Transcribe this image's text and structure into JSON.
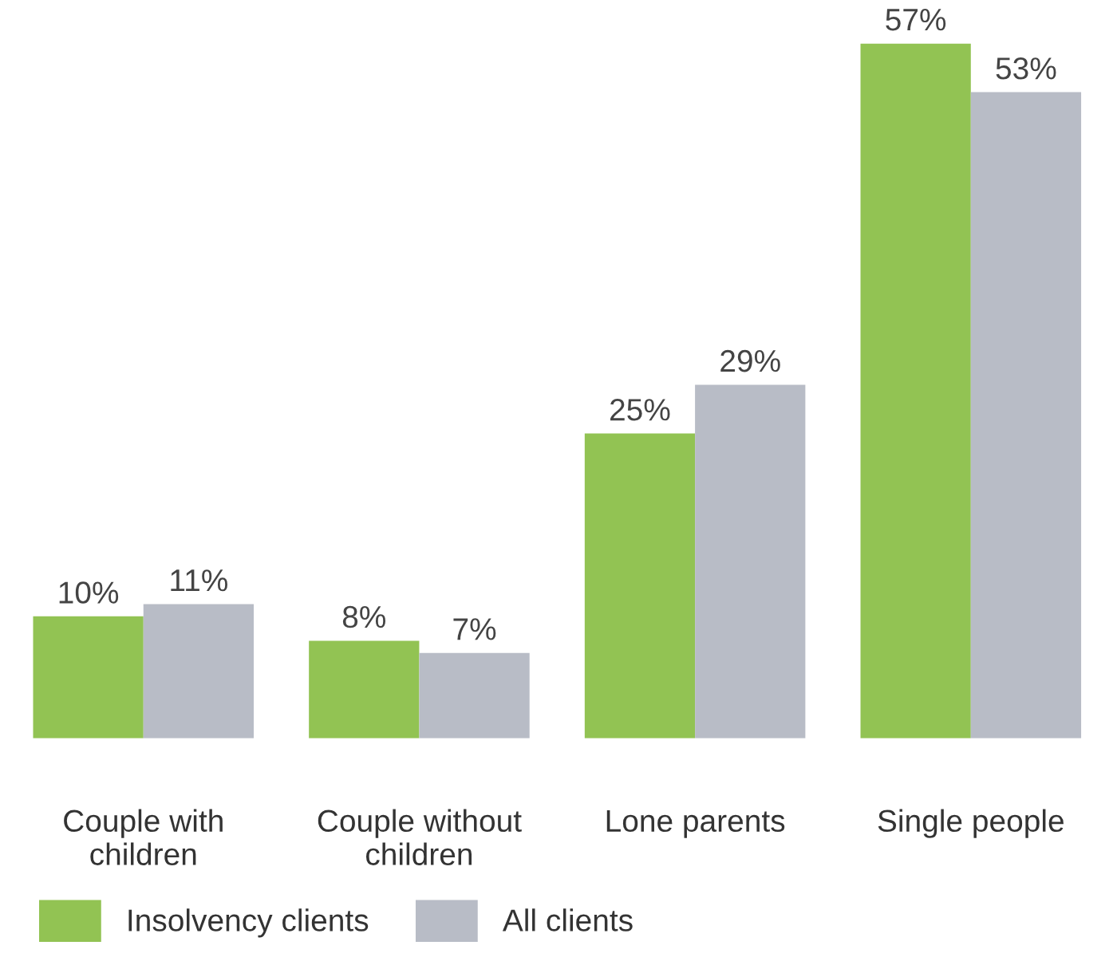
{
  "chart_data": {
    "type": "bar",
    "categories": [
      "Couple with\nchildren",
      "Couple without\nchildren",
      "Lone parents",
      "Single people"
    ],
    "series": [
      {
        "name": "Insolvency clients",
        "color": "#92c353",
        "values": [
          10,
          8,
          25,
          57
        ],
        "value_labels": [
          "10%",
          "8%",
          "25%",
          "57%"
        ]
      },
      {
        "name": "All clients",
        "color": "#b8bcc6",
        "values": [
          11,
          7,
          29,
          53
        ],
        "value_labels": [
          "11%",
          "7%",
          "29%",
          "53%"
        ]
      }
    ],
    "legend": "bottom left",
    "grid": false
  }
}
